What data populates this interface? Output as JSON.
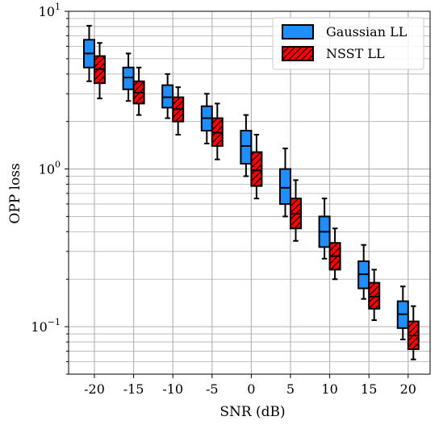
{
  "chart_data": {
    "type": "box",
    "xlabel": "SNR (dB)",
    "ylabel": "OPP loss",
    "yscale": "log",
    "ylim": [
      0.05,
      10
    ],
    "grid": true,
    "legend_position": "top-right",
    "categories": [
      "-20",
      "-15",
      "-10",
      "-5",
      "0",
      "5",
      "10",
      "15",
      "20"
    ],
    "y_major_ticks": [
      {
        "value": 10,
        "base": "10",
        "exp": "1"
      },
      {
        "value": 1,
        "base": "10",
        "exp": "0"
      },
      {
        "value": 0.1,
        "base": "10",
        "exp": "−1"
      }
    ],
    "series": [
      {
        "name": "Gaussian LL",
        "color": "#1f8fff",
        "hatch": "none",
        "boxes": [
          {
            "whislo": 3.6,
            "q1": 4.4,
            "med": 5.4,
            "q3": 6.6,
            "whishi": 8.1
          },
          {
            "whislo": 2.7,
            "q1": 3.2,
            "med": 3.8,
            "q3": 4.4,
            "whishi": 5.4
          },
          {
            "whislo": 2.1,
            "q1": 2.45,
            "med": 2.85,
            "q3": 3.4,
            "whishi": 4.0
          },
          {
            "whislo": 1.45,
            "q1": 1.75,
            "med": 2.1,
            "q3": 2.5,
            "whishi": 3.0
          },
          {
            "whislo": 0.9,
            "q1": 1.08,
            "med": 1.4,
            "q3": 1.75,
            "whishi": 2.2
          },
          {
            "whislo": 0.5,
            "q1": 0.6,
            "med": 0.76,
            "q3": 1.0,
            "whishi": 1.35
          },
          {
            "whislo": 0.27,
            "q1": 0.32,
            "med": 0.4,
            "q3": 0.5,
            "whishi": 0.65
          },
          {
            "whislo": 0.15,
            "q1": 0.175,
            "med": 0.215,
            "q3": 0.26,
            "whishi": 0.33
          },
          {
            "whislo": 0.083,
            "q1": 0.098,
            "med": 0.12,
            "q3": 0.145,
            "whishi": 0.18
          }
        ]
      },
      {
        "name": "NSST LL",
        "color": "#ff0000",
        "hatch": "diagonal",
        "boxes": [
          {
            "whislo": 2.8,
            "q1": 3.5,
            "med": 4.3,
            "q3": 5.2,
            "whishi": 6.3
          },
          {
            "whislo": 2.2,
            "q1": 2.6,
            "med": 3.05,
            "q3": 3.6,
            "whishi": 4.4
          },
          {
            "whislo": 1.65,
            "q1": 2.0,
            "med": 2.4,
            "q3": 2.85,
            "whishi": 3.3
          },
          {
            "whislo": 1.15,
            "q1": 1.4,
            "med": 1.7,
            "q3": 2.1,
            "whishi": 2.6
          },
          {
            "whislo": 0.65,
            "q1": 0.78,
            "med": 0.98,
            "q3": 1.28,
            "whishi": 1.65
          },
          {
            "whislo": 0.35,
            "q1": 0.42,
            "med": 0.52,
            "q3": 0.65,
            "whishi": 0.85
          },
          {
            "whislo": 0.2,
            "q1": 0.23,
            "med": 0.28,
            "q3": 0.34,
            "whishi": 0.42
          },
          {
            "whislo": 0.11,
            "q1": 0.13,
            "med": 0.155,
            "q3": 0.19,
            "whishi": 0.23
          },
          {
            "whislo": 0.062,
            "q1": 0.072,
            "med": 0.088,
            "q3": 0.108,
            "whishi": 0.135
          }
        ]
      }
    ]
  }
}
